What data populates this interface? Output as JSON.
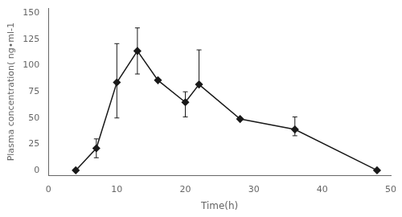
{
  "chart_data": {
    "type": "line",
    "x": [
      4,
      7,
      10,
      13,
      16,
      20,
      22,
      28,
      36,
      48
    ],
    "values": [
      0,
      21,
      84,
      114,
      86,
      65,
      82,
      49,
      39,
      0
    ],
    "error_lower": [
      0,
      9,
      34,
      22,
      0,
      14,
      0,
      0,
      6,
      0
    ],
    "error_upper": [
      0,
      9,
      37,
      22,
      0,
      10,
      33,
      0,
      12,
      0
    ],
    "xlabel": "Time(h)",
    "ylabel": "Plasma concentration( ng•ml-1",
    "xlim": [
      0,
      50
    ],
    "ylim": [
      -5,
      155
    ],
    "xticks": [
      0,
      10,
      20,
      30,
      40,
      50
    ],
    "yticks": [
      0,
      25,
      50,
      75,
      100,
      125,
      150
    ],
    "color": "#1a1a1a",
    "marker": "diamond",
    "line_style": "solid",
    "grid": false
  }
}
